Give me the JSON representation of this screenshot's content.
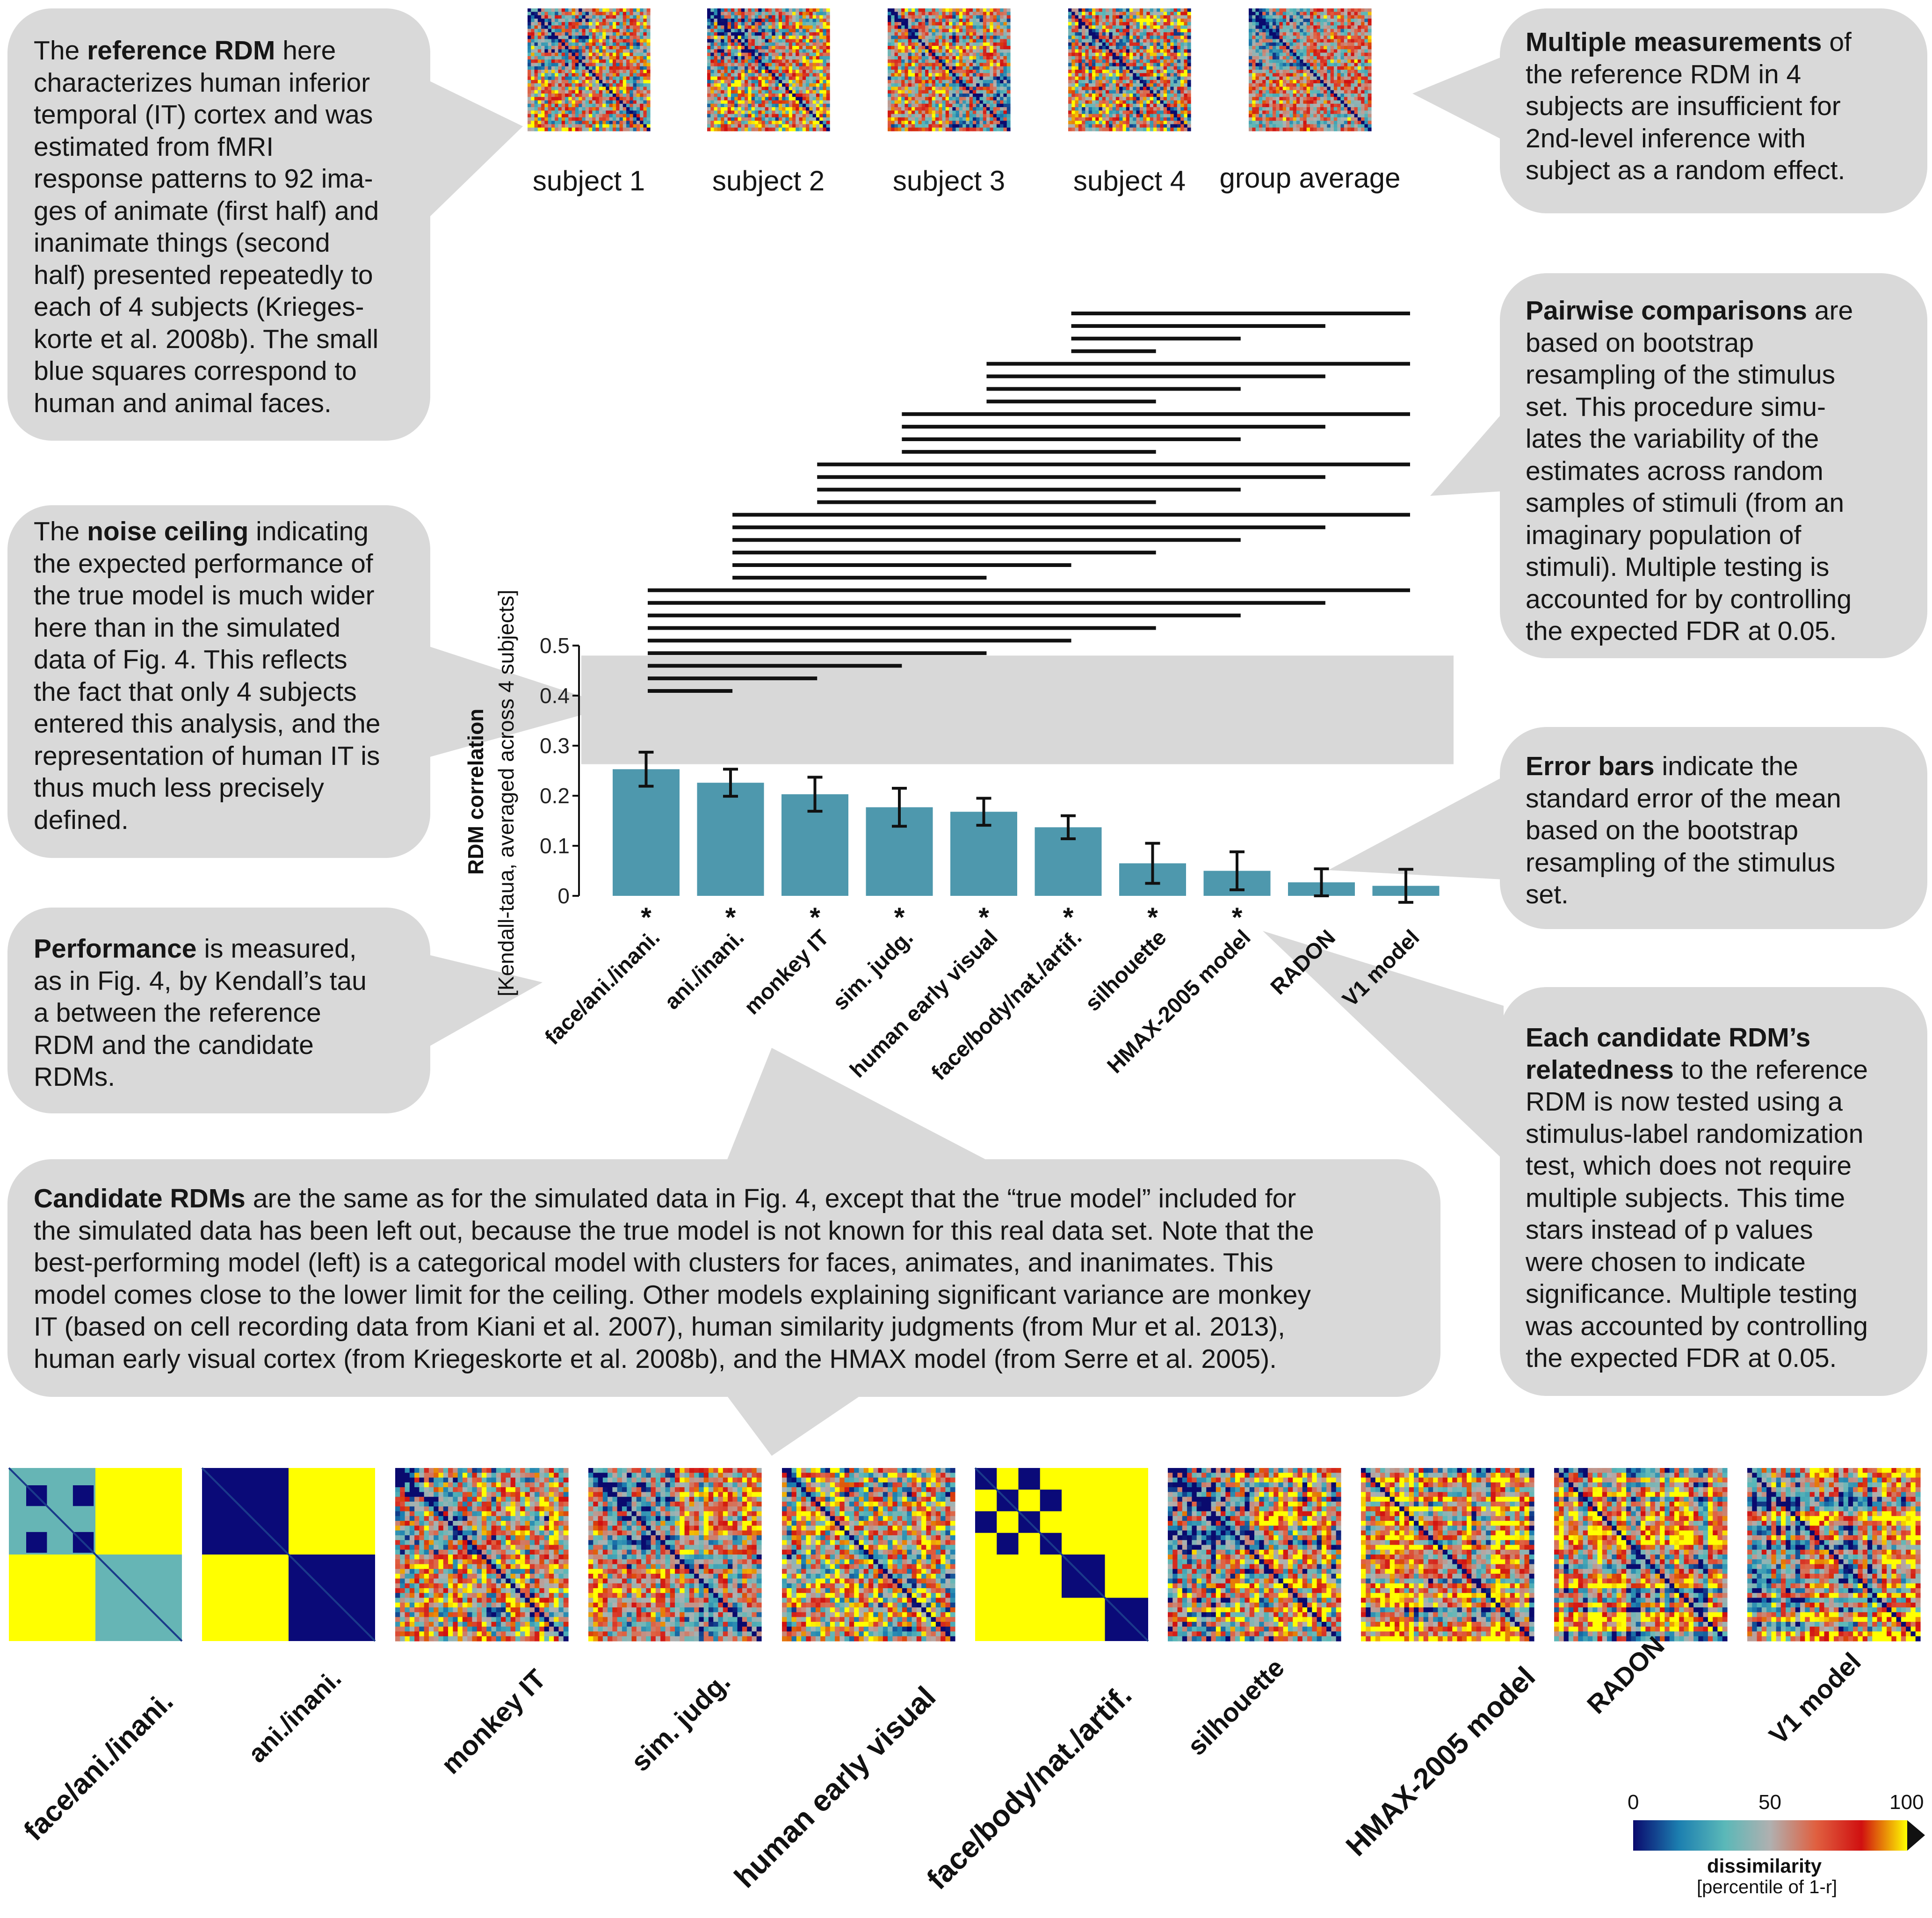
{
  "callouts": {
    "reference": {
      "bold": "reference RDM",
      "lines": [
        "The {b} here",
        "characterizes human inferior",
        "temporal (IT) cortex and was",
        "estimated from fMRI",
        "response patterns to 92 ima-",
        "ges of animate (first half) and",
        "inanimate things (second",
        "half) presented repeatedly to",
        "each of 4 subjects (Krieges-",
        "korte et al. 2008b). The small",
        "blue squares correspond to",
        "human and animal faces."
      ]
    },
    "multiple": {
      "bold": "Multiple measurements",
      "lines": [
        "{b} of",
        "the reference RDM in 4",
        "subjects are insufficient for",
        "2nd-level inference with",
        "subject as a random effect."
      ]
    },
    "pairwise": {
      "bold": "Pairwise comparisons",
      "lines": [
        "{b} are",
        "based on bootstrap",
        "resampling of the stimulus",
        "set. This procedure simu-",
        "lates the variability of the",
        "estimates across random",
        "samples of stimuli (from an",
        "imaginary population of",
        "stimuli). Multiple testing is",
        "accounted for by controlling",
        "the expected FDR at 0.05."
      ]
    },
    "noise": {
      "bold": "noise ceiling",
      "lines": [
        "The {b} indicating",
        "the expected performance of",
        "the true model is much wider",
        "here than in the simulated",
        "data of Fig. 4. This reflects",
        "the fact that only 4 subjects",
        "entered this analysis, and the",
        "representation of human IT is",
        "thus much less precisely",
        "defined."
      ]
    },
    "errorbars": {
      "bold": "Error bars",
      "lines": [
        "{b} indicate the",
        "standard error of the mean",
        "based on the bootstrap",
        "resampling of the stimulus",
        "set."
      ]
    },
    "performance": {
      "bold": "Performance",
      "lines": [
        "{b} is measured,",
        "as in Fig. 4, by Kendall’s tau",
        "a between the reference",
        "RDM and the candidate",
        "RDMs."
      ]
    },
    "each": {
      "bold": "Each candidate RDM’s",
      "bold2": "relatedness",
      "lines": [
        "{b}",
        "{b2} to the reference",
        "RDM is now tested using a",
        "stimulus-label randomization",
        "test, which does not require",
        "multiple subjects. This time",
        "stars instead of p values",
        "were chosen to indicate",
        "significance. Multiple testing",
        "was accounted by controlling",
        "the expected FDR at 0.05."
      ]
    },
    "candidate": {
      "bold": "Candidate RDMs",
      "lines": [
        "{b} are the same as for the simulated data in Fig. 4, except that the “true model” included for",
        "the simulated data has been left out, because the true model is not known for this real data set. Note that the",
        "best-performing model (left) is a categorical model with clusters for faces, animates, and inanimates. This",
        "model comes close to the lower limit for the ceiling. Other models explaining significant variance are monkey",
        "IT (based on cell recording data from Kiani et al. 2007), human similarity judgments (from Mur et al. 2013),",
        "human early visual cortex (from Kriegeskorte et al. 2008b), and the HMAX model (from Serre et al. 2005)."
      ]
    }
  },
  "subjects": [
    "subject 1",
    "subject 2",
    "subject 3",
    "subject 4",
    "group average"
  ],
  "chart_data": {
    "type": "bar",
    "ylabel_line1": "RDM correlation",
    "ylabel_line2": "[Kendall-taua, averaged across 4 subjects]",
    "ylim": [
      0,
      0.5
    ],
    "yticks": [
      "0",
      "0.1",
      "0.2",
      "0.3",
      "0.4",
      "0.5"
    ],
    "ytick_values": [
      0,
      0.1,
      0.2,
      0.3,
      0.4,
      0.5
    ],
    "categories": [
      "face/ani./inani.",
      "ani./inani.",
      "monkey IT",
      "sim. judg.",
      "human early visual",
      "face/body/nat./artif.",
      "silhouette",
      "HMAX-2005 model",
      "RADON",
      "V1 model"
    ],
    "values": [
      0.253,
      0.226,
      0.203,
      0.177,
      0.168,
      0.137,
      0.065,
      0.05,
      0.027,
      0.02
    ],
    "sem": [
      0.034,
      0.027,
      0.034,
      0.038,
      0.027,
      0.023,
      0.04,
      0.038,
      0.027,
      0.033
    ],
    "significant": [
      "*",
      "*",
      "*",
      "*",
      "*",
      "*",
      "*",
      "*",
      "",
      ""
    ],
    "noise_ceiling": [
      0.263,
      0.48
    ],
    "pairwise_lines": [
      [
        5,
        9
      ],
      [
        5,
        8
      ],
      [
        5,
        7
      ],
      [
        5,
        6
      ],
      [
        4,
        9
      ],
      [
        4,
        8
      ],
      [
        4,
        7
      ],
      [
        4,
        6
      ],
      [
        3,
        9
      ],
      [
        3,
        8
      ],
      [
        3,
        7
      ],
      [
        3,
        6
      ],
      [
        2,
        9
      ],
      [
        2,
        8
      ],
      [
        2,
        7
      ],
      [
        2,
        6
      ],
      [
        1,
        9
      ],
      [
        1,
        8
      ],
      [
        1,
        7
      ],
      [
        1,
        6
      ],
      [
        1,
        5
      ],
      [
        1,
        4
      ],
      [
        0,
        9
      ],
      [
        0,
        8
      ],
      [
        0,
        7
      ],
      [
        0,
        6
      ],
      [
        0,
        5
      ],
      [
        0,
        4
      ],
      [
        0,
        3
      ],
      [
        0,
        2
      ],
      [
        0,
        1
      ]
    ],
    "bar_color": "#4e98ad",
    "ceiling_color": "#d8d8d8"
  },
  "candidate_rdms": [
    "face/ani./inani.",
    "ani./inani.",
    "monkey IT",
    "sim. judg.",
    "human early visual",
    "face/body/nat./artif.",
    "silhouette",
    "HMAX-2005 model",
    "RADON",
    "V1 model"
  ],
  "colorbar": {
    "ticks": [
      "0",
      "50",
      "100"
    ],
    "label": "dissimilarity",
    "sublabel": "[percentile of 1-r]",
    "colors": [
      "#0a0a6e",
      "#1c7fb0",
      "#5ab8b8",
      "#b0b0b0",
      "#e06040",
      "#d01010",
      "#ffff00"
    ]
  },
  "colors": {
    "callout_bg": "#d9d9d9",
    "bar": "#4e98ad",
    "rdm_blue": "#0a0a78",
    "rdm_teal": "#66b5b5",
    "rdm_yellow": "#ffff00"
  }
}
